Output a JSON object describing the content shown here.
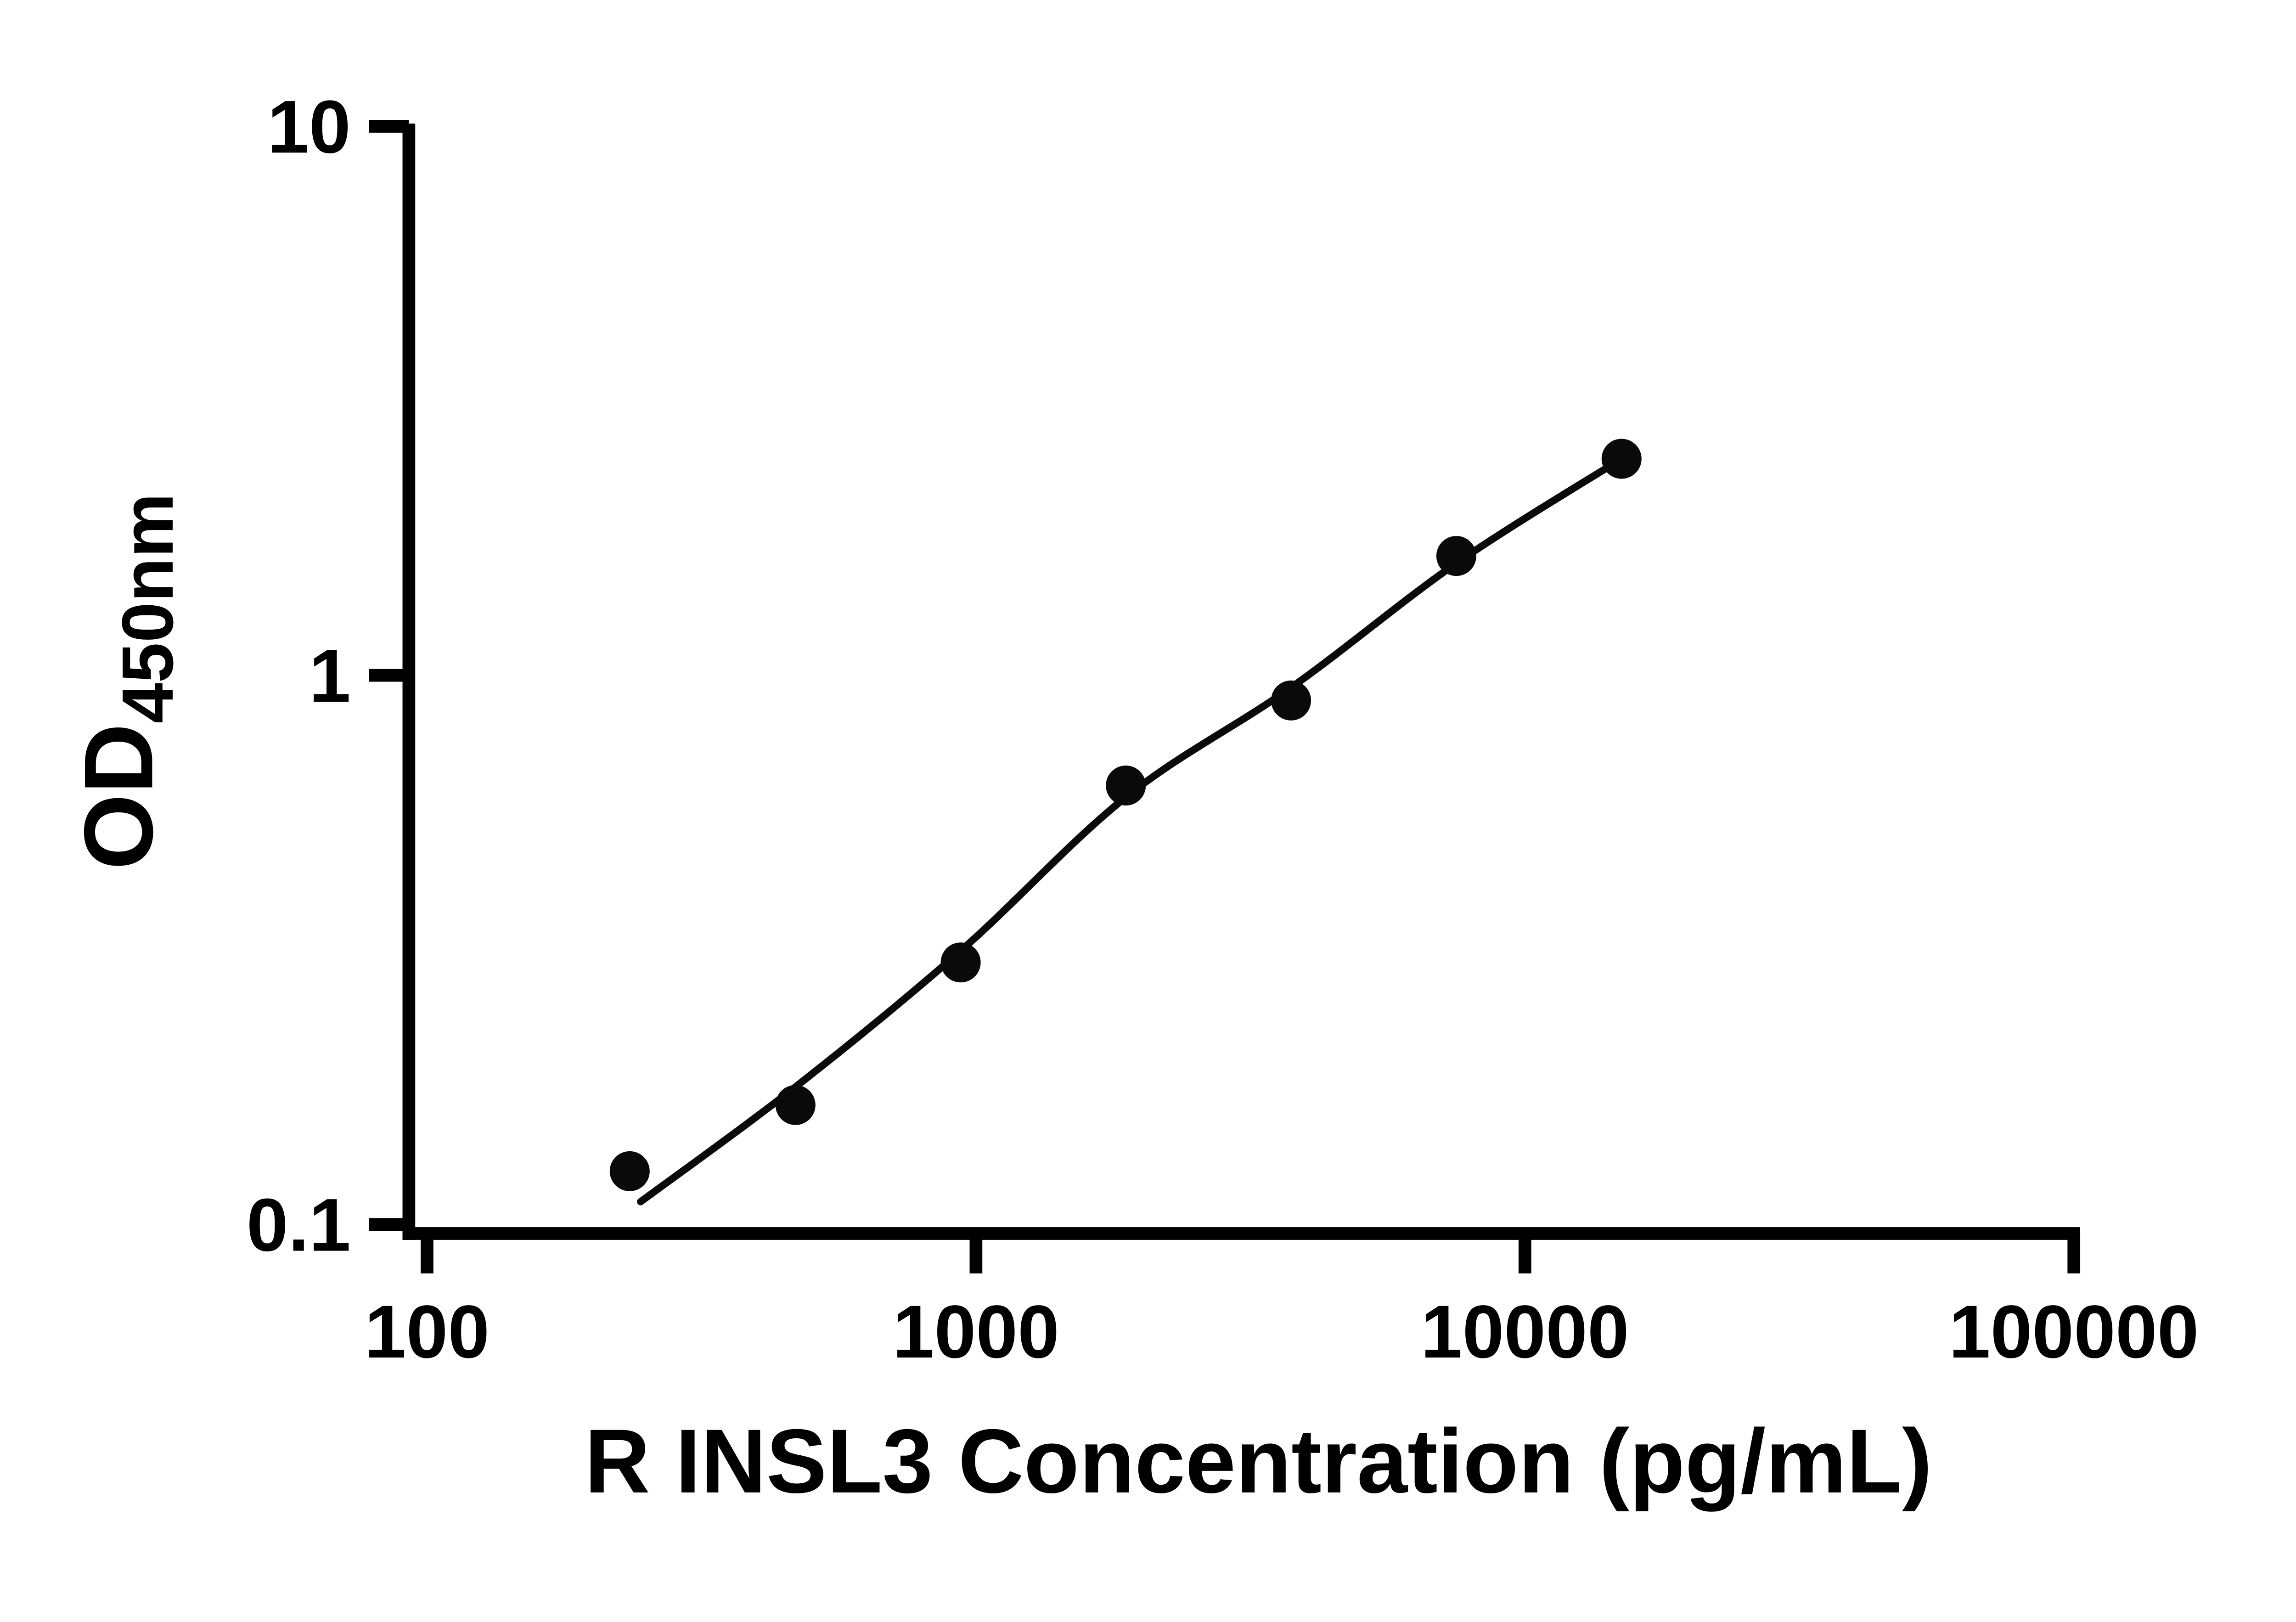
{
  "chart_data": {
    "type": "scatter",
    "title": "",
    "xlabel": "R INSL3 Concentration (pg/mL)",
    "ylabel_main": "OD",
    "ylabel_sub": "450nm",
    "x_scale": "log10",
    "y_scale": "log10",
    "xlim": [
      100,
      100000
    ],
    "ylim": [
      0.1,
      10
    ],
    "grid": false,
    "legend": false,
    "axis_color": "#000000",
    "marker_color": "#0a0a0a",
    "line_color": "#0a0a0a",
    "x_ticks": [
      {
        "value": 100,
        "label": "100"
      },
      {
        "value": 1000,
        "label": "1000"
      },
      {
        "value": 10000,
        "label": "10000"
      },
      {
        "value": 100000,
        "label": "100000"
      }
    ],
    "y_ticks": [
      {
        "value": 10,
        "label": "10"
      },
      {
        "value": 1,
        "label": "1"
      },
      {
        "value": 0.1,
        "label": "0.1"
      }
    ],
    "points": [
      {
        "x": 234,
        "y": 0.125
      },
      {
        "x": 469,
        "y": 0.165
      },
      {
        "x": 938,
        "y": 0.3
      },
      {
        "x": 1875,
        "y": 0.63
      },
      {
        "x": 3750,
        "y": 0.9
      },
      {
        "x": 7500,
        "y": 1.65
      },
      {
        "x": 15000,
        "y": 2.48
      }
    ],
    "fit_curve": [
      [
        245,
        0.11
      ],
      [
        469,
        0.178
      ],
      [
        938,
        0.315
      ],
      [
        1875,
        0.6
      ],
      [
        3750,
        0.95
      ],
      [
        7500,
        1.6
      ],
      [
        15000,
        2.48
      ]
    ]
  }
}
